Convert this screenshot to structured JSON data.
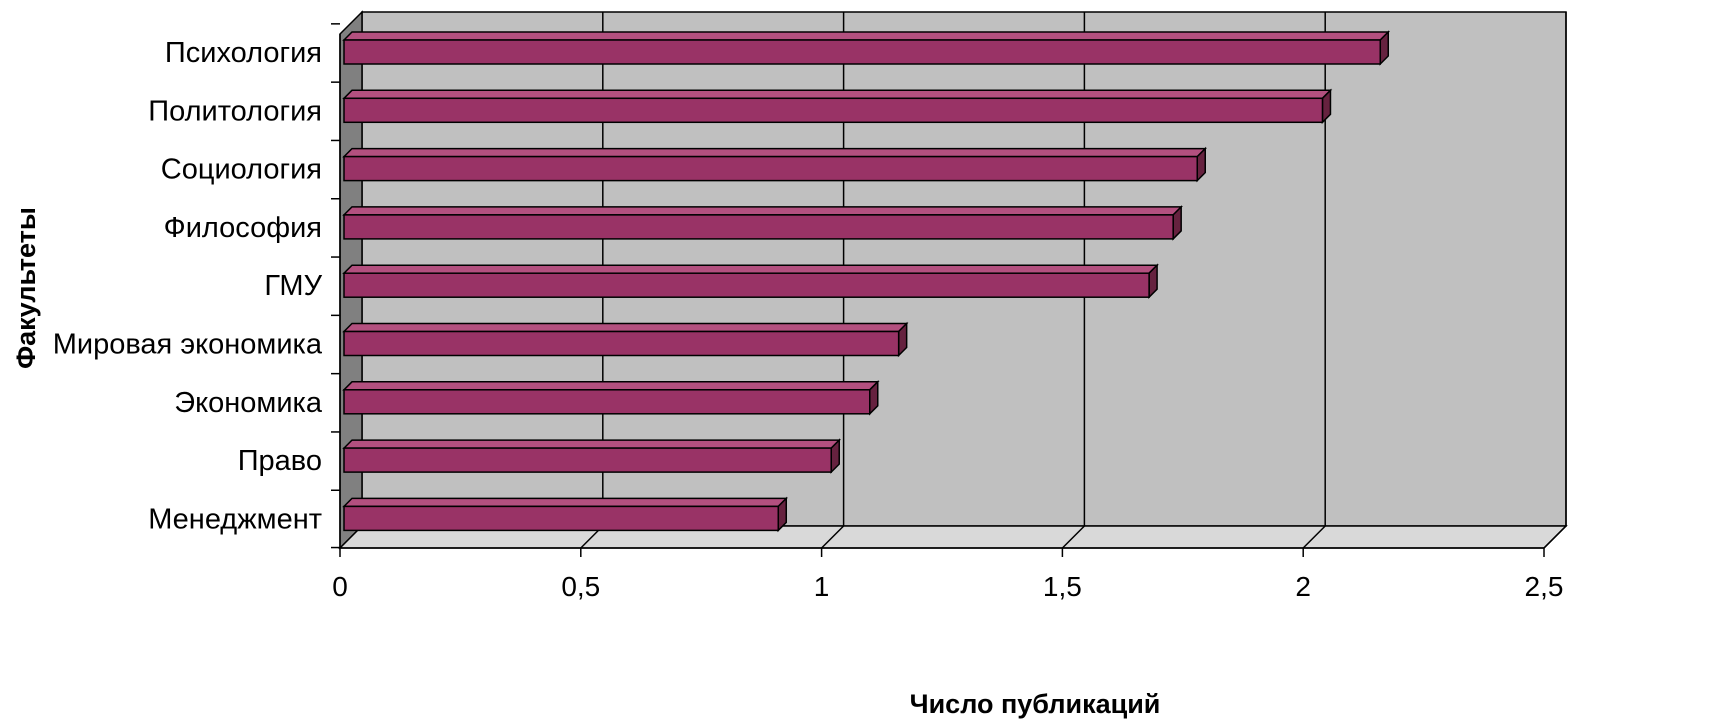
{
  "chart_data": {
    "type": "bar",
    "orientation": "horizontal",
    "style": "3d",
    "categories": [
      "Психология",
      "Политология",
      "Социология",
      "Философия",
      "ГМУ",
      "Мировая экономика",
      "Экономика",
      "Право",
      "Менеджмент"
    ],
    "values": [
      2.16,
      2.04,
      1.78,
      1.73,
      1.68,
      1.16,
      1.1,
      1.02,
      0.91
    ],
    "xlabel": "Число публикаций",
    "ylabel": "Факультеты",
    "xlim": [
      0,
      2.5
    ],
    "x_ticks": [
      "0",
      "0,5",
      "1",
      "1,5",
      "2",
      "2,5"
    ],
    "grid": true,
    "legend": "none",
    "colors": {
      "bar_front": "#993366",
      "bar_top": "#b3507f",
      "bar_side": "#66223f",
      "wall": "#c0c0c0",
      "side_wall": "#808080",
      "floor": "#d9d9d9",
      "gridline": "#000000"
    }
  }
}
